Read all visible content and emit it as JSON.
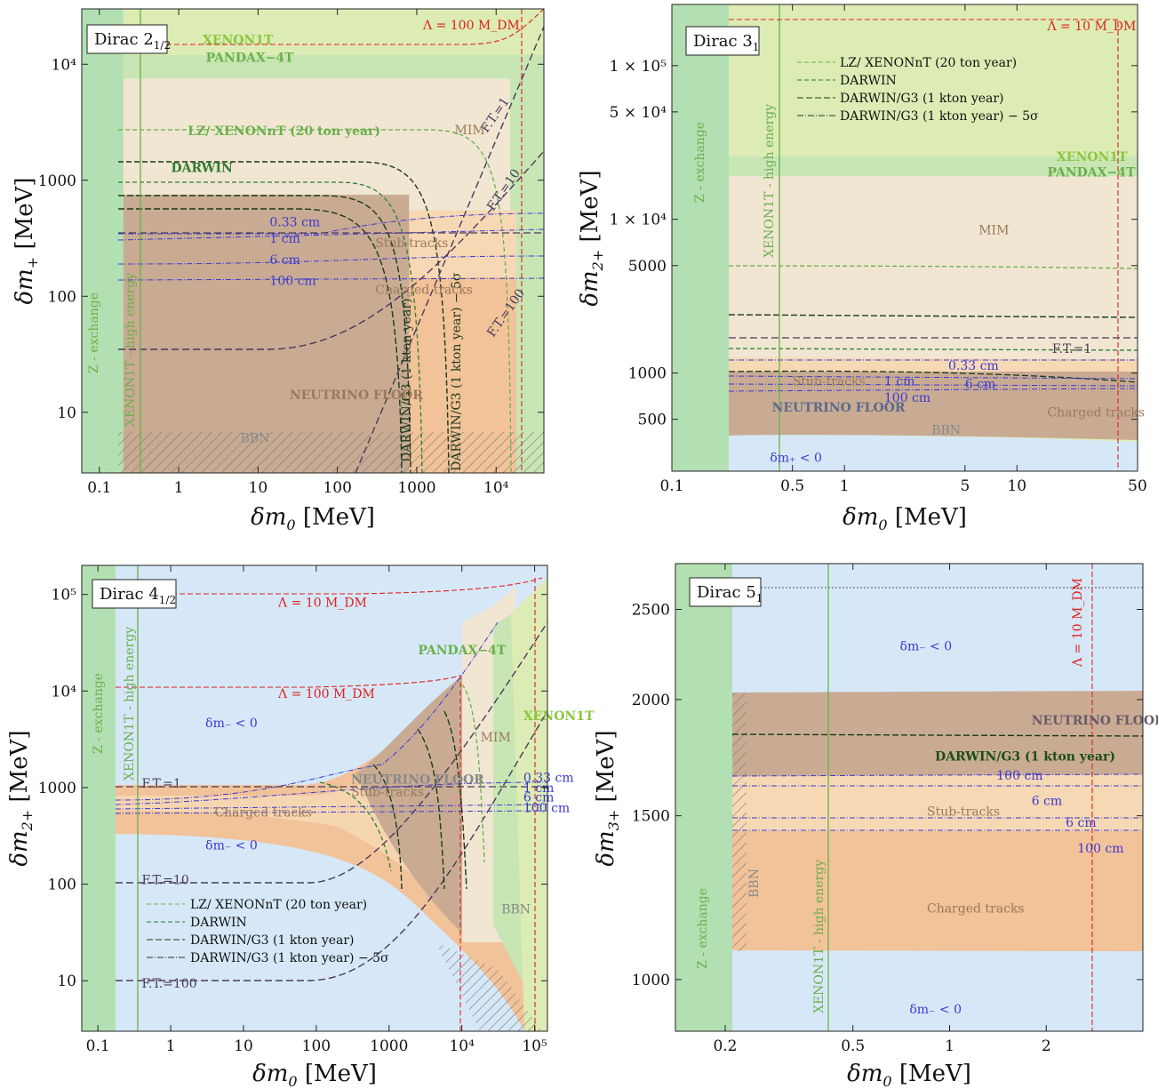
{
  "chart_data": [
    {
      "type": "area",
      "title": "Dirac 2",
      "title_sub": "1/2",
      "xlabel_sym": "δm",
      "xlabel_sub": "0",
      "xlabel_unit": " [MeV]",
      "ylabel_sym": "δm",
      "ylabel_sub": "+",
      "ylabel_unit": " [MeV]",
      "xscale": "log",
      "yscale": "log",
      "xlim": [
        0.06,
        40000
      ],
      "ylim": [
        3,
        30000
      ],
      "x_ticks": [
        {
          "v": 0.1,
          "t": "0.1"
        },
        {
          "v": 1,
          "t": "1"
        },
        {
          "v": 10,
          "t": "10"
        },
        {
          "v": 100,
          "t": "100"
        },
        {
          "v": 1000,
          "t": "1000"
        },
        {
          "v": 10000,
          "t": "10⁴"
        }
      ],
      "y_ticks": [
        {
          "v": 10,
          "t": "10"
        },
        {
          "v": 100,
          "t": "100"
        },
        {
          "v": 1000,
          "t": "1000"
        },
        {
          "v": 10000,
          "t": "10⁴"
        }
      ],
      "regions": [
        {
          "name": "XENON1T",
          "color": "#dcecb4",
          "x": [
            0.2,
            40000
          ],
          "y": [
            3,
            30000
          ]
        },
        {
          "name": "PANDAX-4T",
          "color": "#c8e6b4",
          "x": [
            0.2,
            40000
          ],
          "y": [
            3,
            12000
          ]
        },
        {
          "name": "MIM",
          "color": "#f0e6d2",
          "x": [
            0.2,
            15000
          ],
          "y": [
            3,
            7500
          ]
        },
        {
          "name": "Stub-tracks",
          "color": "#f7d8b5",
          "x": [
            0.2,
            18000
          ],
          "y": [
            3,
            550
          ]
        },
        {
          "name": "Charged tracks",
          "color": "#f2c299",
          "x": [
            0.2,
            18000
          ],
          "y": [
            3,
            145
          ]
        },
        {
          "name": "NEUTRINO FLOOR",
          "color": "#c9ab93",
          "x": [
            0.2,
            800
          ],
          "y": [
            3,
            750
          ]
        },
        {
          "name": "Z - exchange",
          "color": "#b3e0b2",
          "x": [
            0.06,
            0.2
          ],
          "y": [
            3,
            30000
          ]
        }
      ],
      "labels": [
        {
          "t": "XENON1T",
          "x": 2,
          "y": 15000,
          "c": "#8cc63f"
        },
        {
          "t": "PANDAX−4T",
          "x": 2.2,
          "y": 10500,
          "c": "#6ab04c"
        },
        {
          "t": "MIM",
          "x": 3000,
          "y": 2500,
          "c": "#9b7a5a"
        },
        {
          "t": "LZ/ XENONnT (20 ton year)",
          "x": 1.3,
          "y": 2450,
          "c": "#6ab04c"
        },
        {
          "t": "DARWIN",
          "x": 0.8,
          "y": 1180,
          "c": "#2e7d32"
        },
        {
          "t": "0.33 cm",
          "x": 14,
          "y": 400,
          "c": "#3a3ad0"
        },
        {
          "t": "1 cm",
          "x": 14,
          "y": 290,
          "c": "#3a3ad0"
        },
        {
          "t": "Stub-tracks",
          "x": 300,
          "y": 265,
          "c": "#9b7a5a"
        },
        {
          "t": "6 cm",
          "x": 14,
          "y": 190,
          "c": "#3a3ad0"
        },
        {
          "t": "100 cm",
          "x": 14,
          "y": 125,
          "c": "#3a3ad0"
        },
        {
          "t": "Charged tracks",
          "x": 300,
          "y": 105,
          "c": "#9b7a5a"
        },
        {
          "t": "NEUTRINO FLOOR",
          "x": 25,
          "y": 13,
          "c": "#9b7a5a"
        },
        {
          "t": "BBN",
          "x": 6,
          "y": 5.5,
          "c": "#888888"
        },
        {
          "t": "Λ = 100 M_DM",
          "x": 1200,
          "y": 20000,
          "c": "#e02020"
        }
      ]
    },
    {
      "type": "area",
      "title": "Dirac 3",
      "title_sub": "1",
      "xlabel_sym": "δm",
      "xlabel_sub": "0",
      "xlabel_unit": " [MeV]",
      "ylabel_sym": "δm",
      "ylabel_sub": "2+",
      "ylabel_unit": " [MeV]",
      "xscale": "log",
      "yscale": "log",
      "xlim": [
        0.1,
        50
      ],
      "ylim": [
        230,
        250000
      ],
      "x_ticks": [
        {
          "v": 0.1,
          "t": "0.1"
        },
        {
          "v": 0.5,
          "t": "0.5"
        },
        {
          "v": 1,
          "t": "1"
        },
        {
          "v": 5,
          "t": "5"
        },
        {
          "v": 10,
          "t": "10"
        },
        {
          "v": 50,
          "t": "50"
        }
      ],
      "y_ticks": [
        {
          "v": 500,
          "t": "500"
        },
        {
          "v": 1000,
          "t": "1000"
        },
        {
          "v": 5000,
          "t": "5000"
        },
        {
          "v": 10000,
          "t": "1 × 10⁴"
        },
        {
          "v": 50000,
          "t": "5 × 10⁴"
        },
        {
          "v": 100000,
          "t": "1 × 10⁵"
        }
      ],
      "legend": [
        "LZ/ XENONnT (20 ton year)",
        "DARWIN",
        "DARWIN/G3 (1 kton year)",
        "DARWIN/G3 (1 kton year) − 5σ"
      ],
      "labels": [
        {
          "t": "XENON1T",
          "x": 17,
          "y": 24000,
          "c": "#8cc63f"
        },
        {
          "t": "PANDAX−4T",
          "x": 15,
          "y": 19000,
          "c": "#6ab04c"
        },
        {
          "t": "MIM",
          "x": 6,
          "y": 8000,
          "c": "#9b7a5a"
        },
        {
          "t": "F.T.=1",
          "x": 16,
          "y": 1350,
          "c": "#4a3a5a"
        },
        {
          "t": "0.33 cm",
          "x": 4,
          "y": 1050,
          "c": "#3a3ad0"
        },
        {
          "t": "Stub-tracks",
          "x": 0.5,
          "y": 830,
          "c": "#9b7a5a"
        },
        {
          "t": "1 cm",
          "x": 1.7,
          "y": 830,
          "c": "#3a3ad0"
        },
        {
          "t": "6 cm",
          "x": 5,
          "y": 800,
          "c": "#3a3ad0"
        },
        {
          "t": "100 cm",
          "x": 1.7,
          "y": 650,
          "c": "#3a3ad0"
        },
        {
          "t": "NEUTRINO FLOOR",
          "x": 0.38,
          "y": 560,
          "c": "#5a6a8a"
        },
        {
          "t": "Charged tracks",
          "x": 15,
          "y": 520,
          "c": "#9b7a5a"
        },
        {
          "t": "BBN",
          "x": 3.2,
          "y": 400,
          "c": "#888888"
        },
        {
          "t": "δm₊ < 0",
          "x": 0.37,
          "y": 265,
          "c": "#3a3ad0"
        },
        {
          "t": "Λ = 10 M_DM",
          "x": 15,
          "y": 170000,
          "c": "#e02020"
        }
      ]
    },
    {
      "type": "area",
      "title": "Dirac 4",
      "title_sub": "1/2",
      "xlabel_sym": "δm",
      "xlabel_sub": "0",
      "xlabel_unit": " [MeV]",
      "ylabel_sym": "δm",
      "ylabel_sub": "2+",
      "ylabel_unit": " [MeV]",
      "xscale": "log",
      "yscale": "log",
      "xlim": [
        0.06,
        150000
      ],
      "ylim": [
        3,
        200000
      ],
      "x_ticks": [
        {
          "v": 0.1,
          "t": "0.1"
        },
        {
          "v": 1,
          "t": "1"
        },
        {
          "v": 10,
          "t": "10"
        },
        {
          "v": 100,
          "t": "100"
        },
        {
          "v": 1000,
          "t": "1000"
        },
        {
          "v": 10000,
          "t": "10⁴"
        },
        {
          "v": 100000,
          "t": "10⁵"
        }
      ],
      "y_ticks": [
        {
          "v": 10,
          "t": "10"
        },
        {
          "v": 100,
          "t": "100"
        },
        {
          "v": 1000,
          "t": "1000"
        },
        {
          "v": 10000,
          "t": "10⁴"
        },
        {
          "v": 100000,
          "t": "10⁵"
        }
      ],
      "legend": [
        "LZ/ XENONnT (20 ton year)",
        "DARWIN",
        "DARWIN/G3 (1 kton year)",
        "DARWIN/G3 (1 kton year) − 5σ"
      ],
      "labels": [
        {
          "t": "Λ = 10 M_DM",
          "x": 30,
          "y": 75000,
          "c": "#e02020"
        },
        {
          "t": "δm₋ < 0",
          "x": 3,
          "y": 4200,
          "c": "#3a3ad0"
        },
        {
          "t": "PANDAX−4T",
          "x": 2500,
          "y": 24000,
          "c": "#6ab04c"
        },
        {
          "t": "XENON1T",
          "x": 70000,
          "y": 5000,
          "c": "#8cc63f"
        },
        {
          "t": "Λ = 100 M_DM",
          "x": 30,
          "y": 8500,
          "c": "#e02020"
        },
        {
          "t": "MIM",
          "x": 18000,
          "y": 3000,
          "c": "#9b7a5a"
        },
        {
          "t": "NEUTRINO FLOOR",
          "x": 300,
          "y": 1100,
          "c": "#888888"
        },
        {
          "t": "F.T.=1",
          "x": 0.4,
          "y": 1000,
          "c": "#4a3a5a"
        },
        {
          "t": "0.33 cm",
          "x": 70000,
          "y": 1150,
          "c": "#3a3ad0"
        },
        {
          "t": "1 cm",
          "x": 70000,
          "y": 900,
          "c": "#3a3ad0"
        },
        {
          "t": "Stub-tracks",
          "x": 300,
          "y": 820,
          "c": "#9b7a5a"
        },
        {
          "t": "6 cm",
          "x": 70000,
          "y": 720,
          "c": "#3a3ad0"
        },
        {
          "t": "100 cm",
          "x": 70000,
          "y": 560,
          "c": "#3a3ad0"
        },
        {
          "t": "Charged tracks",
          "x": 4,
          "y": 500,
          "c": "#9b7a5a"
        },
        {
          "t": "δm₋ < 0",
          "x": 3,
          "y": 230,
          "c": "#3a3ad0"
        },
        {
          "t": "F.T.=10",
          "x": 0.4,
          "y": 100,
          "c": "#4a3a5a"
        },
        {
          "t": "BBN",
          "x": 35000,
          "y": 50,
          "c": "#888888"
        },
        {
          "t": "F.T.=100",
          "x": 0.4,
          "y": 8.5,
          "c": "#4a3a5a"
        }
      ]
    },
    {
      "type": "area",
      "title": "Dirac 5",
      "title_sub": "1",
      "xlabel_sym": "δm",
      "xlabel_sub": "0",
      "xlabel_unit": " [MeV]",
      "ylabel_sym": "δm",
      "ylabel_sub": "3+",
      "ylabel_unit": " [MeV]",
      "xscale": "log",
      "yscale": "log",
      "xlim": [
        0.14,
        4
      ],
      "ylim": [
        880,
        2800
      ],
      "x_ticks": [
        {
          "v": 0.2,
          "t": "0.2"
        },
        {
          "v": 0.5,
          "t": "0.5"
        },
        {
          "v": 1,
          "t": "1"
        },
        {
          "v": 2,
          "t": "2"
        }
      ],
      "y_ticks": [
        {
          "v": 1000,
          "t": "1000"
        },
        {
          "v": 1500,
          "t": "1500"
        },
        {
          "v": 2000,
          "t": "2000"
        },
        {
          "v": 2500,
          "t": "2500"
        }
      ],
      "labels": [
        {
          "t": "δm₋ < 0",
          "x": 0.7,
          "y": 2260,
          "c": "#3a3ad0"
        },
        {
          "t": "NEUTRINO FLOOR",
          "x": 1.8,
          "y": 1880,
          "c": "#6a5a6a"
        },
        {
          "t": "DARWIN/G3 (1 kton year)",
          "x": 0.9,
          "y": 1720,
          "c": "#1b4d1b"
        },
        {
          "t": "100 cm",
          "x": 1.4,
          "y": 1640,
          "c": "#3a3ad0"
        },
        {
          "t": "6 cm",
          "x": 1.8,
          "y": 1540,
          "c": "#3a3ad0"
        },
        {
          "t": "Stub-tracks",
          "x": 0.85,
          "y": 1500,
          "c": "#9b7a5a"
        },
        {
          "t": "6 cm",
          "x": 2.3,
          "y": 1460,
          "c": "#3a3ad0"
        },
        {
          "t": "100 cm",
          "x": 2.5,
          "y": 1370,
          "c": "#3a3ad0"
        },
        {
          "t": "Charged tracks",
          "x": 0.85,
          "y": 1180,
          "c": "#9b7a5a"
        },
        {
          "t": "δm₋ < 0",
          "x": 0.75,
          "y": 920,
          "c": "#3a3ad0"
        }
      ]
    }
  ],
  "misc": {
    "z_exchange": "Z - exchange",
    "xenon_he": "XENON1T - high energy",
    "ft1": "F.T.=1",
    "ft10": "F.T.=10",
    "ft100": "F.T.=100",
    "darwin_g3": "DARWIN/G3 (1 kton year)",
    "darwin_g3_5s": "DARWIN/G3 (1 kton year) − 5σ",
    "bbn": "BBN",
    "lambda10": "Λ = 10 M_DM"
  }
}
